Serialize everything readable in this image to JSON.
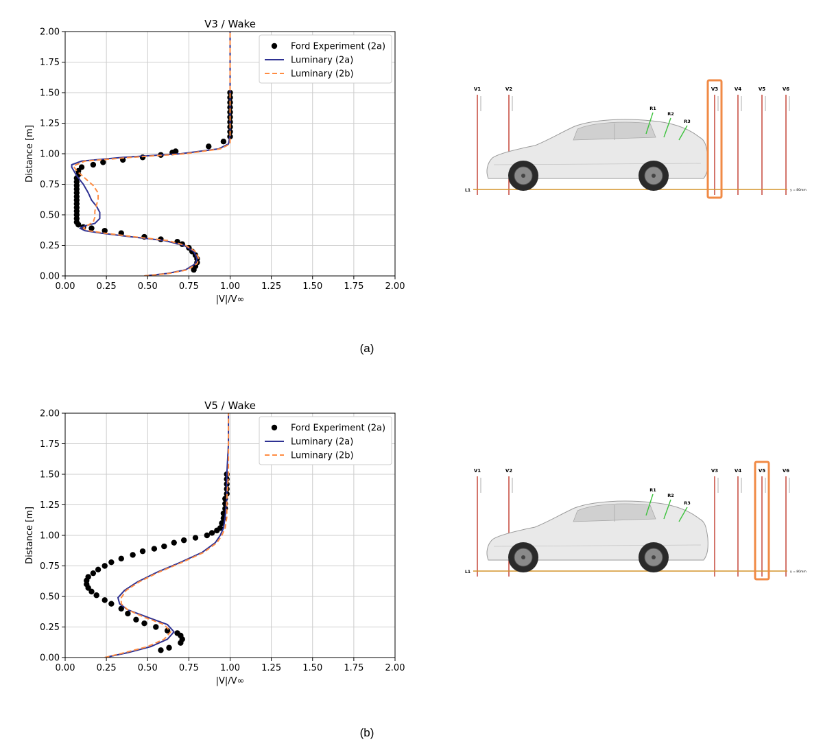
{
  "colors": {
    "experiment": "#000000",
    "luminary_2a": "#2e3192",
    "luminary_2b": "#ff8c42",
    "grid": "#cccccc",
    "highlight": "#f08a45",
    "probe_line": "#c0392b",
    "ground_line": "#d4942a",
    "label_line": "#3cc23c"
  },
  "panels": [
    {
      "label": "(a)"
    },
    {
      "label": "(b)"
    }
  ],
  "diagram": {
    "probe_labels": [
      "V1",
      "V2",
      "V3",
      "V4",
      "V5",
      "V6"
    ],
    "region_labels": [
      "R1",
      "R2",
      "R3"
    ],
    "line_label": "L1",
    "ground_note": "y = 80mm",
    "highlighted": [
      "V3",
      "V5"
    ]
  },
  "chart_data": [
    {
      "type": "line",
      "title": "V3 / Wake",
      "xlabel": "|V|/V∞",
      "ylabel": "Distance [m]",
      "xlim": [
        0,
        2
      ],
      "ylim": [
        0,
        2
      ],
      "xticks": [
        "0.00",
        "0.25",
        "0.50",
        "0.75",
        "1.00",
        "1.25",
        "1.50",
        "1.75",
        "2.00"
      ],
      "yticks": [
        "0.00",
        "0.25",
        "0.50",
        "0.75",
        "1.00",
        "1.25",
        "1.50",
        "1.75",
        "2.00"
      ],
      "grid": true,
      "legend": "top-right",
      "series": [
        {
          "name": "Ford Experiment (2a)",
          "kind": "scatter",
          "points": [
            [
              0.78,
              0.05
            ],
            [
              0.79,
              0.08
            ],
            [
              0.8,
              0.11
            ],
            [
              0.8,
              0.14
            ],
            [
              0.79,
              0.17
            ],
            [
              0.77,
              0.2
            ],
            [
              0.75,
              0.23
            ],
            [
              0.71,
              0.26
            ],
            [
              0.68,
              0.28
            ],
            [
              0.58,
              0.3
            ],
            [
              0.48,
              0.32
            ],
            [
              0.34,
              0.35
            ],
            [
              0.24,
              0.37
            ],
            [
              0.16,
              0.39
            ],
            [
              0.11,
              0.4
            ],
            [
              0.08,
              0.42
            ],
            [
              0.07,
              0.44
            ],
            [
              0.07,
              0.47
            ],
            [
              0.07,
              0.5
            ],
            [
              0.07,
              0.53
            ],
            [
              0.07,
              0.56
            ],
            [
              0.07,
              0.59
            ],
            [
              0.07,
              0.62
            ],
            [
              0.07,
              0.65
            ],
            [
              0.07,
              0.68
            ],
            [
              0.07,
              0.71
            ],
            [
              0.07,
              0.74
            ],
            [
              0.07,
              0.77
            ],
            [
              0.07,
              0.8
            ],
            [
              0.08,
              0.83
            ],
            [
              0.08,
              0.86
            ],
            [
              0.1,
              0.89
            ],
            [
              0.17,
              0.91
            ],
            [
              0.23,
              0.93
            ],
            [
              0.35,
              0.95
            ],
            [
              0.47,
              0.97
            ],
            [
              0.58,
              0.99
            ],
            [
              0.65,
              1.01
            ],
            [
              0.67,
              1.02
            ],
            [
              0.87,
              1.06
            ],
            [
              0.96,
              1.1
            ],
            [
              1.0,
              1.14
            ],
            [
              1.0,
              1.18
            ],
            [
              1.0,
              1.22
            ],
            [
              1.0,
              1.26
            ],
            [
              1.0,
              1.3
            ],
            [
              1.0,
              1.34
            ],
            [
              1.0,
              1.38
            ],
            [
              1.0,
              1.42
            ],
            [
              1.0,
              1.46
            ],
            [
              1.0,
              1.5
            ]
          ]
        },
        {
          "name": "Luminary (2a)",
          "kind": "line",
          "points": [
            [
              0.48,
              0.0
            ],
            [
              0.62,
              0.02
            ],
            [
              0.73,
              0.05
            ],
            [
              0.79,
              0.1
            ],
            [
              0.8,
              0.14
            ],
            [
              0.78,
              0.2
            ],
            [
              0.72,
              0.25
            ],
            [
              0.6,
              0.29
            ],
            [
              0.4,
              0.32
            ],
            [
              0.22,
              0.35
            ],
            [
              0.12,
              0.37
            ],
            [
              0.09,
              0.39
            ],
            [
              0.12,
              0.41
            ],
            [
              0.18,
              0.43
            ],
            [
              0.21,
              0.47
            ],
            [
              0.21,
              0.52
            ],
            [
              0.19,
              0.57
            ],
            [
              0.16,
              0.62
            ],
            [
              0.14,
              0.68
            ],
            [
              0.11,
              0.75
            ],
            [
              0.07,
              0.82
            ],
            [
              0.04,
              0.89
            ],
            [
              0.04,
              0.91
            ],
            [
              0.1,
              0.94
            ],
            [
              0.35,
              0.97
            ],
            [
              0.7,
              1.0
            ],
            [
              0.93,
              1.04
            ],
            [
              0.99,
              1.08
            ],
            [
              1.0,
              1.15
            ],
            [
              1.0,
              1.3
            ],
            [
              1.0,
              1.5
            ],
            [
              1.0,
              1.75
            ],
            [
              1.0,
              2.0
            ]
          ]
        },
        {
          "name": "Luminary (2b)",
          "kind": "dashed",
          "points": [
            [
              0.48,
              0.0
            ],
            [
              0.63,
              0.02
            ],
            [
              0.74,
              0.05
            ],
            [
              0.8,
              0.1
            ],
            [
              0.81,
              0.14
            ],
            [
              0.79,
              0.2
            ],
            [
              0.73,
              0.25
            ],
            [
              0.62,
              0.29
            ],
            [
              0.42,
              0.32
            ],
            [
              0.24,
              0.35
            ],
            [
              0.14,
              0.37
            ],
            [
              0.11,
              0.39
            ],
            [
              0.13,
              0.41
            ],
            [
              0.17,
              0.44
            ],
            [
              0.18,
              0.48
            ],
            [
              0.18,
              0.53
            ],
            [
              0.19,
              0.58
            ],
            [
              0.2,
              0.63
            ],
            [
              0.2,
              0.68
            ],
            [
              0.17,
              0.74
            ],
            [
              0.12,
              0.8
            ],
            [
              0.07,
              0.86
            ],
            [
              0.05,
              0.9
            ],
            [
              0.12,
              0.94
            ],
            [
              0.4,
              0.97
            ],
            [
              0.73,
              1.0
            ],
            [
              0.94,
              1.04
            ],
            [
              1.0,
              1.08
            ],
            [
              1.0,
              1.15
            ],
            [
              1.0,
              1.3
            ],
            [
              1.0,
              1.5
            ],
            [
              1.0,
              1.75
            ],
            [
              1.0,
              2.0
            ]
          ]
        }
      ]
    },
    {
      "type": "line",
      "title": "V5 / Wake",
      "xlabel": "|V|/V∞",
      "ylabel": "Distance [m]",
      "xlim": [
        0,
        2
      ],
      "ylim": [
        0,
        2
      ],
      "xticks": [
        "0.00",
        "0.25",
        "0.50",
        "0.75",
        "1.00",
        "1.25",
        "1.50",
        "1.75",
        "2.00"
      ],
      "yticks": [
        "0.00",
        "0.25",
        "0.50",
        "0.75",
        "1.00",
        "1.25",
        "1.50",
        "1.75",
        "2.00"
      ],
      "grid": true,
      "legend": "top-right",
      "series": [
        {
          "name": "Ford Experiment (2a)",
          "kind": "scatter",
          "points": [
            [
              0.58,
              0.06
            ],
            [
              0.63,
              0.08
            ],
            [
              0.7,
              0.12
            ],
            [
              0.71,
              0.15
            ],
            [
              0.7,
              0.18
            ],
            [
              0.68,
              0.2
            ],
            [
              0.62,
              0.22
            ],
            [
              0.55,
              0.25
            ],
            [
              0.48,
              0.28
            ],
            [
              0.43,
              0.31
            ],
            [
              0.38,
              0.36
            ],
            [
              0.34,
              0.4
            ],
            [
              0.28,
              0.44
            ],
            [
              0.24,
              0.47
            ],
            [
              0.19,
              0.51
            ],
            [
              0.16,
              0.54
            ],
            [
              0.14,
              0.57
            ],
            [
              0.13,
              0.6
            ],
            [
              0.13,
              0.63
            ],
            [
              0.14,
              0.66
            ],
            [
              0.17,
              0.69
            ],
            [
              0.2,
              0.72
            ],
            [
              0.24,
              0.75
            ],
            [
              0.28,
              0.78
            ],
            [
              0.34,
              0.81
            ],
            [
              0.41,
              0.84
            ],
            [
              0.47,
              0.87
            ],
            [
              0.54,
              0.89
            ],
            [
              0.6,
              0.91
            ],
            [
              0.66,
              0.94
            ],
            [
              0.72,
              0.96
            ],
            [
              0.79,
              0.98
            ],
            [
              0.86,
              1.0
            ],
            [
              0.89,
              1.02
            ],
            [
              0.92,
              1.04
            ],
            [
              0.94,
              1.06
            ],
            [
              0.95,
              1.1
            ],
            [
              0.96,
              1.14
            ],
            [
              0.96,
              1.18
            ],
            [
              0.97,
              1.22
            ],
            [
              0.97,
              1.26
            ],
            [
              0.97,
              1.3
            ],
            [
              0.98,
              1.34
            ],
            [
              0.98,
              1.38
            ],
            [
              0.98,
              1.42
            ],
            [
              0.98,
              1.46
            ],
            [
              0.98,
              1.5
            ]
          ]
        },
        {
          "name": "Luminary (2a)",
          "kind": "line",
          "points": [
            [
              0.24,
              0.0
            ],
            [
              0.38,
              0.04
            ],
            [
              0.52,
              0.09
            ],
            [
              0.62,
              0.15
            ],
            [
              0.66,
              0.21
            ],
            [
              0.62,
              0.27
            ],
            [
              0.5,
              0.33
            ],
            [
              0.38,
              0.39
            ],
            [
              0.33,
              0.44
            ],
            [
              0.32,
              0.49
            ],
            [
              0.36,
              0.55
            ],
            [
              0.44,
              0.62
            ],
            [
              0.56,
              0.7
            ],
            [
              0.7,
              0.78
            ],
            [
              0.83,
              0.86
            ],
            [
              0.91,
              0.94
            ],
            [
              0.94,
              1.0
            ],
            [
              0.96,
              1.06
            ],
            [
              0.97,
              1.15
            ],
            [
              0.98,
              1.3
            ],
            [
              0.98,
              1.5
            ],
            [
              0.99,
              1.75
            ],
            [
              0.99,
              2.0
            ]
          ]
        },
        {
          "name": "Luminary (2b)",
          "kind": "dashed",
          "points": [
            [
              0.24,
              0.0
            ],
            [
              0.36,
              0.04
            ],
            [
              0.5,
              0.09
            ],
            [
              0.6,
              0.15
            ],
            [
              0.64,
              0.21
            ],
            [
              0.6,
              0.27
            ],
            [
              0.48,
              0.33
            ],
            [
              0.38,
              0.39
            ],
            [
              0.34,
              0.44
            ],
            [
              0.34,
              0.49
            ],
            [
              0.37,
              0.55
            ],
            [
              0.45,
              0.62
            ],
            [
              0.57,
              0.7
            ],
            [
              0.71,
              0.78
            ],
            [
              0.84,
              0.86
            ],
            [
              0.92,
              0.94
            ],
            [
              0.95,
              1.0
            ],
            [
              0.97,
              1.06
            ],
            [
              0.98,
              1.15
            ],
            [
              0.98,
              1.3
            ],
            [
              0.99,
              1.5
            ],
            [
              0.99,
              1.75
            ],
            [
              0.99,
              2.0
            ]
          ]
        }
      ]
    }
  ]
}
